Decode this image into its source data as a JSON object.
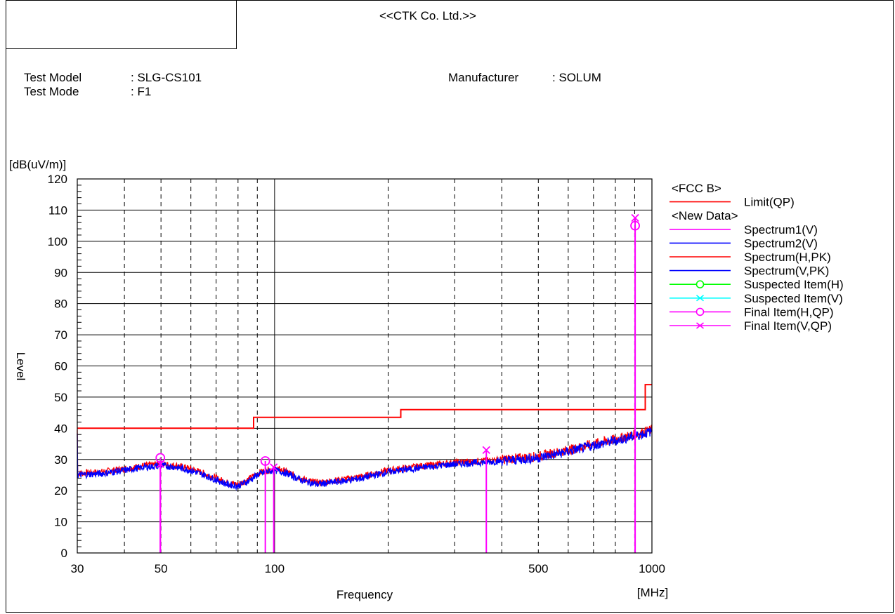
{
  "header": {
    "company": "<<CTK Co. Ltd.>>",
    "test_model_label": "Test Model",
    "test_model_value": ": SLG-CS101",
    "test_mode_label": "Test Mode",
    "test_mode_value": ": F1",
    "manufacturer_label": "Manufacturer",
    "manufacturer_value": ": SOLUM"
  },
  "colors": {
    "limit": "#ff0000",
    "spectrum1": "#ff00ff",
    "spectrum2": "#0000ff",
    "spectrum_h_pk": "#ff0000",
    "spectrum_v_pk": "#0000ff",
    "suspected_h": "#00ff00",
    "suspected_v": "#00ffff",
    "final_h": "#ff00ff",
    "final_v": "#ff00ff"
  },
  "chart_data": {
    "type": "line",
    "xscale": "log",
    "xlim": [
      30,
      1000
    ],
    "ylim": [
      0,
      120
    ],
    "xlabel": "Frequency",
    "xunit": "[MHz]",
    "ylabel": "Level",
    "yunit": "[dB(uV/m)]",
    "x_ticks": [
      30,
      50,
      100,
      500,
      1000
    ],
    "x_tick_labels": [
      "30",
      "50",
      "100",
      "500",
      "1000"
    ],
    "y_ticks": [
      0,
      10,
      20,
      30,
      40,
      50,
      60,
      70,
      80,
      90,
      100,
      110,
      120
    ],
    "y_tick_labels": [
      "0",
      "10",
      "20",
      "30",
      "40",
      "50",
      "60",
      "70",
      "80",
      "90",
      "100",
      "110",
      "120"
    ],
    "grid": true,
    "legend_position": "right",
    "legend": [
      {
        "kind": "group",
        "label": "<FCC B>"
      },
      {
        "kind": "line",
        "label": "Limit(QP)",
        "color": "#ff0000"
      },
      {
        "kind": "group",
        "label": "<New Data>"
      },
      {
        "kind": "line",
        "label": "Spectrum1(V)",
        "color": "#ff00ff"
      },
      {
        "kind": "line",
        "label": "Spectrum2(V)",
        "color": "#0000ff"
      },
      {
        "kind": "line",
        "label": "Spectrum(H,PK)",
        "color": "#ff0000"
      },
      {
        "kind": "line",
        "label": "Spectrum(V,PK)",
        "color": "#0000ff"
      },
      {
        "kind": "circle",
        "label": "Suspected Item(H)",
        "color": "#00ff00"
      },
      {
        "kind": "cross",
        "label": "Suspected Item(V)",
        "color": "#00ffff"
      },
      {
        "kind": "circle",
        "label": "Final Item(H,QP)",
        "color": "#ff00ff"
      },
      {
        "kind": "cross",
        "label": "Final Item(V,QP)",
        "color": "#ff00ff"
      }
    ],
    "series": [
      {
        "name": "Limit(QP)",
        "color": "#ff0000",
        "x": [
          30,
          88,
          88,
          216,
          216,
          960,
          960,
          1000
        ],
        "y": [
          40,
          40,
          43.5,
          43.5,
          46,
          46,
          54,
          54
        ]
      },
      {
        "name": "Spectrum(H,PK)",
        "color": "#ff0000",
        "x": [
          30,
          35,
          40,
          45,
          50,
          55,
          60,
          65,
          70,
          75,
          80,
          85,
          90,
          95,
          100,
          105,
          110,
          120,
          130,
          140,
          150,
          170,
          200,
          250,
          300,
          350,
          400,
          450,
          500,
          600,
          700,
          800,
          900,
          1000
        ],
        "y": [
          25.5,
          26,
          27,
          28,
          28.5,
          28,
          27,
          25.5,
          24,
          22.5,
          22,
          23.5,
          25.5,
          26.5,
          27,
          26.5,
          25.5,
          23.5,
          22.5,
          23,
          23.5,
          24.5,
          26.5,
          28,
          29,
          29.5,
          30,
          30.5,
          31,
          33,
          35,
          36.5,
          38,
          39.5
        ]
      },
      {
        "name": "Spectrum(V,PK)",
        "color": "#0000ff",
        "x": [
          30,
          35,
          40,
          45,
          50,
          55,
          60,
          65,
          70,
          75,
          80,
          85,
          90,
          95,
          100,
          105,
          110,
          120,
          130,
          140,
          150,
          170,
          200,
          250,
          300,
          350,
          400,
          450,
          500,
          600,
          700,
          800,
          900,
          1000
        ],
        "y": [
          25,
          25.5,
          26.5,
          27.5,
          28,
          27.5,
          26.5,
          25,
          23.5,
          22,
          21.5,
          23,
          25,
          26,
          26.5,
          26,
          25,
          23,
          22,
          22.5,
          23,
          24,
          26,
          27.5,
          28.5,
          29,
          29.5,
          30,
          30.5,
          32.5,
          34.5,
          36,
          37.5,
          39
        ]
      }
    ],
    "final_items": [
      {
        "type": "H,QP",
        "freq": 49.8,
        "level": 30.5,
        "color": "#ff00ff"
      },
      {
        "type": "V,QP",
        "freq": 49.8,
        "level": 28.5,
        "color": "#ff00ff"
      },
      {
        "type": "H,QP",
        "freq": 94.5,
        "level": 29.5,
        "color": "#ff00ff"
      },
      {
        "type": "V,QP",
        "freq": 99.5,
        "level": 27.5,
        "color": "#ff00ff"
      },
      {
        "type": "V,QP",
        "freq": 364,
        "level": 33,
        "color": "#ff00ff"
      },
      {
        "type": "H,QP",
        "freq": 902.5,
        "level": 105,
        "color": "#ff00ff"
      },
      {
        "type": "V,QP",
        "freq": 902.5,
        "level": 107.5,
        "color": "#ff00ff"
      }
    ]
  }
}
